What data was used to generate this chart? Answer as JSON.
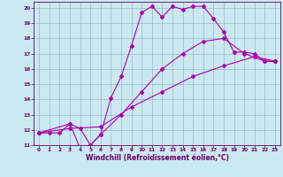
{
  "xlabel": "Windchill (Refroidissement éolien,°C)",
  "bg_color": "#cce8f0",
  "line_color": "#aa00aa",
  "grid_color": "#99bbcc",
  "ylim": [
    11,
    20.4
  ],
  "xlim": [
    -0.5,
    23.5
  ],
  "yticks": [
    11,
    12,
    13,
    14,
    15,
    16,
    17,
    18,
    19,
    20
  ],
  "xticks": [
    0,
    1,
    2,
    3,
    4,
    5,
    6,
    7,
    8,
    9,
    10,
    11,
    12,
    13,
    14,
    15,
    16,
    17,
    18,
    19,
    20,
    21,
    22,
    23
  ],
  "line1_x": [
    0,
    1,
    2,
    3,
    4,
    5,
    6,
    7,
    8,
    9,
    10,
    11,
    12,
    13,
    14,
    15,
    16,
    17,
    18,
    19,
    20,
    21,
    22,
    23
  ],
  "line1_y": [
    11.8,
    11.8,
    11.8,
    12.4,
    12.1,
    11.0,
    11.7,
    14.1,
    15.5,
    17.5,
    19.7,
    20.1,
    19.4,
    20.1,
    19.9,
    20.1,
    20.1,
    19.3,
    18.4,
    17.1,
    17.1,
    17.0,
    16.5,
    16.5
  ],
  "line2_x": [
    0,
    3,
    4,
    5,
    6,
    8,
    10,
    12,
    14,
    16,
    18,
    20,
    22,
    23
  ],
  "line2_y": [
    11.8,
    12.4,
    10.8,
    11.0,
    11.7,
    13.0,
    14.5,
    16.0,
    17.0,
    17.8,
    18.0,
    17.0,
    16.5,
    16.5
  ],
  "line3_x": [
    0,
    3,
    6,
    9,
    12,
    15,
    18,
    21,
    23
  ],
  "line3_y": [
    11.8,
    12.1,
    12.2,
    13.5,
    14.5,
    15.5,
    16.2,
    16.8,
    16.5
  ],
  "xlabel_fontsize": 5.5,
  "tick_fontsize": 4.2,
  "tick_color": "#660066",
  "label_color": "#660066"
}
